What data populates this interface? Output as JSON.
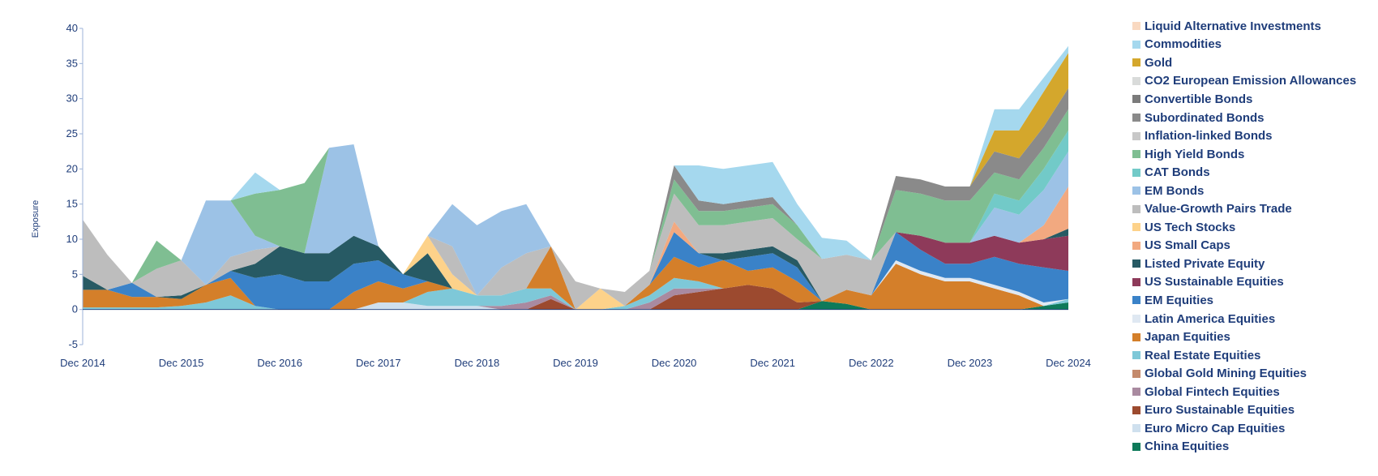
{
  "chart_data": {
    "type": "area",
    "stacked": true,
    "title": "",
    "xlabel": "",
    "ylabel": "Exposure",
    "ylim": [
      -5,
      40
    ],
    "yticks": [
      -5,
      0,
      5,
      10,
      15,
      20,
      25,
      30,
      35,
      40
    ],
    "xlim": [
      "Dec 2014",
      "Dec 2024"
    ],
    "xticks": [
      "Dec 2014",
      "Dec 2015",
      "Dec 2016",
      "Dec 2017",
      "Dec 2018",
      "Dec 2019",
      "Dec 2020",
      "Dec 2021",
      "Dec 2022",
      "Dec 2023",
      "Dec 2024"
    ],
    "grid": false,
    "legend_position": "right",
    "x": [
      "Dec 2014",
      "Mar 2015",
      "Jun 2015",
      "Sep 2015",
      "Dec 2015",
      "Mar 2016",
      "Jun 2016",
      "Sep 2016",
      "Dec 2016",
      "Mar 2017",
      "Jun 2017",
      "Sep 2017",
      "Dec 2017",
      "Mar 2018",
      "Jun 2018",
      "Sep 2018",
      "Dec 2018",
      "Mar 2019",
      "Jun 2019",
      "Sep 2019",
      "Dec 2019",
      "Mar 2020",
      "Jun 2020",
      "Sep 2020",
      "Dec 2020",
      "Mar 2021",
      "Jun 2021",
      "Sep 2021",
      "Dec 2021",
      "Mar 2022",
      "Jun 2022",
      "Sep 2022",
      "Dec 2022",
      "Mar 2023",
      "Jun 2023",
      "Sep 2023",
      "Dec 2023",
      "Mar 2024",
      "Jun 2024",
      "Sep 2024",
      "Dec 2024"
    ],
    "series": [
      {
        "name": "China Equities",
        "color": "#0e7a5a",
        "values": [
          0,
          0,
          0,
          0,
          0,
          0,
          0,
          0,
          0,
          0,
          0,
          0,
          0,
          0,
          0,
          0,
          0,
          0,
          0,
          0,
          0,
          0,
          0,
          0,
          0,
          0,
          0,
          0,
          0,
          0,
          1.2,
          0.8,
          0,
          0,
          0,
          0,
          0,
          0,
          0,
          0.5,
          1
        ]
      },
      {
        "name": "Euro Micro Cap Equities",
        "color": "#cfe0ee",
        "values": [
          0,
          0,
          0,
          0,
          0,
          0,
          0,
          0,
          0,
          0,
          0,
          0,
          1,
          1,
          0.5,
          0.5,
          0.5,
          0,
          0,
          0,
          0,
          0,
          0,
          0,
          0,
          0,
          0,
          0,
          0,
          0,
          0,
          0,
          0,
          0,
          0,
          0,
          0,
          0,
          0,
          0,
          0
        ]
      },
      {
        "name": "Euro Sustainable Equities",
        "color": "#9c4a2f",
        "values": [
          0,
          0,
          0,
          0,
          0,
          0,
          0,
          0,
          0,
          0,
          0,
          0,
          0,
          0,
          0,
          0,
          0,
          0,
          0,
          1.5,
          0,
          0,
          0,
          0,
          2,
          2.5,
          3,
          3.5,
          3,
          1,
          0,
          0,
          0,
          0,
          0,
          0,
          0,
          0,
          0,
          0,
          0
        ]
      },
      {
        "name": "Global Fintech Equities",
        "color": "#a98aa0",
        "values": [
          0,
          0,
          0,
          0,
          0,
          0,
          0,
          0,
          0,
          0,
          0,
          0,
          0,
          0,
          0,
          0,
          0,
          0.5,
          1,
          0.5,
          0,
          0,
          0,
          1,
          1,
          0.5,
          0,
          0,
          0,
          0,
          0,
          0,
          0,
          0,
          0,
          0,
          0,
          0,
          0,
          0,
          0
        ]
      },
      {
        "name": "Global Gold Mining Equities",
        "color": "#c48a6c",
        "values": [
          0,
          0,
          0,
          0,
          0,
          0,
          0,
          0,
          0,
          0,
          0,
          0,
          0,
          0,
          0,
          0,
          0,
          0,
          0,
          0,
          0,
          0,
          0,
          0,
          0,
          0,
          0,
          0,
          0,
          0,
          0,
          0,
          0,
          0,
          0,
          0,
          0,
          0,
          0,
          0,
          0
        ]
      },
      {
        "name": "Real Estate Equities",
        "color": "#7ec8d8",
        "values": [
          0.3,
          0.3,
          0.3,
          0.3,
          0.5,
          1,
          2,
          0.5,
          0,
          0,
          0,
          0,
          0,
          0,
          2,
          2.5,
          1.5,
          1.5,
          2,
          1,
          0,
          0,
          0.5,
          1,
          1.5,
          1,
          0,
          0,
          0,
          0,
          0,
          0,
          0,
          0,
          0,
          0,
          0,
          0,
          0,
          0,
          0.5
        ]
      },
      {
        "name": "Japan Equities",
        "color": "#d47f2a",
        "values": [
          2.5,
          2.5,
          1.5,
          1.5,
          1,
          2.5,
          2.5,
          0,
          0,
          0,
          0,
          2.5,
          3,
          2,
          1.5,
          0,
          0,
          0,
          0,
          6,
          0,
          0,
          0,
          1.5,
          3,
          2,
          4,
          2,
          3,
          3,
          0,
          2,
          2,
          6.5,
          5,
          4,
          4,
          3,
          2,
          0,
          0
        ]
      },
      {
        "name": "Latin America Equities",
        "color": "#dfe8f2",
        "values": [
          0,
          0,
          0,
          0,
          0,
          0,
          0,
          0,
          0,
          0,
          0,
          0,
          0,
          0,
          0,
          0,
          0,
          0,
          0,
          0,
          0,
          0,
          0,
          0,
          0,
          0,
          0,
          0,
          0,
          0,
          0,
          0,
          0,
          0.5,
          0.5,
          0.5,
          0.5,
          0.5,
          0.5,
          0.5,
          0
        ]
      },
      {
        "name": "EM Equities",
        "color": "#3a82c8",
        "values": [
          0,
          0,
          2,
          0,
          0,
          0,
          1,
          4,
          5,
          4,
          4,
          4,
          3,
          2,
          0,
          0,
          0,
          0,
          0,
          0,
          0,
          0,
          0,
          0,
          3.5,
          2,
          0,
          2,
          2,
          2,
          0,
          0,
          0,
          4,
          3,
          2,
          2,
          4,
          4,
          5,
          4
        ]
      },
      {
        "name": "US Sustainable Equities",
        "color": "#8e3a5a",
        "values": [
          0,
          0,
          0,
          0,
          0,
          0,
          0,
          0,
          0,
          0,
          0,
          0,
          0,
          0,
          0,
          0,
          0,
          0,
          0,
          0,
          0,
          0,
          0,
          0,
          0,
          0,
          0,
          0,
          0,
          0,
          0,
          0,
          0,
          0,
          2,
          3,
          3,
          3,
          3,
          4,
          5
        ]
      },
      {
        "name": "Listed Private Equity",
        "color": "#275a64",
        "values": [
          2,
          0,
          0,
          0,
          0.5,
          0,
          0,
          2,
          4,
          4,
          4,
          4,
          2,
          0,
          4,
          0,
          0,
          0,
          0,
          0,
          0,
          0,
          0,
          0,
          0,
          0,
          1,
          1,
          1,
          1,
          0,
          0,
          0,
          0,
          0,
          0,
          0,
          0,
          0,
          0,
          1
        ]
      },
      {
        "name": "US Small Caps",
        "color": "#f2a980",
        "values": [
          0,
          0,
          0,
          0,
          0,
          0,
          0,
          0,
          0,
          0,
          0,
          0,
          0,
          0,
          0,
          0,
          0,
          0,
          0,
          0,
          0,
          0,
          0,
          0,
          1.5,
          0,
          0,
          0,
          0,
          0,
          0,
          0,
          0,
          0,
          0,
          0,
          0,
          0,
          0,
          2,
          6
        ]
      },
      {
        "name": "US Tech Stocks",
        "color": "#fdd28a",
        "values": [
          0,
          0,
          0,
          0,
          0,
          0,
          0,
          0,
          0,
          0,
          0,
          0,
          0,
          0,
          2.5,
          2,
          0,
          0,
          0,
          0,
          0,
          3,
          0,
          0,
          0,
          0,
          0,
          0,
          0,
          0,
          0,
          0,
          0,
          0,
          0,
          0,
          0,
          0,
          0,
          0,
          0
        ]
      },
      {
        "name": "Value-Growth Pairs Trade",
        "color": "#bdbdbd",
        "values": [
          8,
          5,
          0,
          4,
          5,
          0,
          2,
          2,
          0,
          0,
          0,
          0,
          0,
          0,
          0,
          4,
          0,
          4,
          5,
          0,
          4,
          0,
          2,
          2,
          4,
          4,
          4,
          4,
          4,
          3,
          6,
          5,
          5,
          0,
          0,
          0,
          0,
          0,
          0,
          0,
          0
        ]
      },
      {
        "name": "EM Bonds",
        "color": "#9cc2e6",
        "values": [
          0,
          0,
          0,
          0,
          0,
          12,
          8,
          2,
          0,
          0,
          15,
          13,
          0,
          0,
          0,
          6,
          10,
          8,
          7,
          0,
          0,
          0,
          0,
          0,
          0,
          0,
          0,
          0,
          0,
          0,
          0,
          0,
          0,
          0,
          0,
          0,
          0,
          4,
          4,
          5,
          5
        ]
      },
      {
        "name": "CAT Bonds",
        "color": "#72cac8",
        "values": [
          0,
          0,
          0,
          0,
          0,
          0,
          0,
          0,
          0,
          0,
          0,
          0,
          0,
          0,
          0,
          0,
          0,
          0,
          0,
          0,
          0,
          0,
          0,
          0,
          0,
          0,
          0,
          0,
          0,
          0,
          0,
          0,
          0,
          0,
          0,
          0,
          0,
          2,
          2,
          3,
          3
        ]
      },
      {
        "name": "High Yield Bonds",
        "color": "#7fbe92",
        "values": [
          0,
          0,
          0,
          4,
          0,
          0,
          0,
          6,
          8,
          10,
          0,
          0,
          0,
          0,
          0,
          0,
          0,
          0,
          0,
          0,
          0,
          0,
          0,
          0,
          2,
          2,
          2,
          2,
          2,
          2,
          0,
          0,
          0,
          6,
          6,
          6,
          6,
          3,
          3,
          3,
          3
        ]
      },
      {
        "name": "Inflation-linked Bonds",
        "color": "#c8c8c8",
        "values": [
          0,
          0,
          0,
          0,
          0,
          0,
          0,
          0,
          0,
          0,
          0,
          0,
          0,
          0,
          0,
          0,
          0,
          0,
          0,
          0,
          0,
          0,
          0,
          0,
          0,
          0,
          0,
          0,
          0,
          0,
          0,
          0,
          0,
          0,
          0,
          0,
          0,
          0,
          0,
          0,
          0
        ]
      },
      {
        "name": "Subordinated Bonds",
        "color": "#8a8a8a",
        "values": [
          0,
          0,
          0,
          0,
          0,
          0,
          0,
          0,
          0,
          0,
          0,
          0,
          0,
          0,
          0,
          0,
          0,
          0,
          0,
          0,
          0,
          0,
          0,
          0,
          2,
          1.5,
          1,
          1,
          1,
          0,
          0,
          0,
          0,
          2,
          2,
          2,
          2,
          3,
          3,
          3,
          3
        ]
      },
      {
        "name": "Convertible Bonds",
        "color": "#7b7b7b",
        "values": [
          0,
          0,
          0,
          0,
          0,
          0,
          0,
          0,
          0,
          0,
          0,
          0,
          0,
          0,
          0,
          0,
          0,
          0,
          0,
          0,
          0,
          0,
          0,
          0,
          0,
          0,
          0,
          0,
          0,
          0,
          0,
          0,
          0,
          0,
          0,
          0,
          0,
          0,
          0,
          0,
          0
        ]
      },
      {
        "name": "CO2 European Emission Allowances",
        "color": "#d9dbda",
        "values": [
          0,
          0,
          0,
          0,
          0,
          0,
          0,
          0,
          0,
          0,
          0,
          0,
          0,
          0,
          0,
          0,
          0,
          0,
          0,
          0,
          0,
          0,
          0,
          0,
          0,
          0,
          0,
          0,
          0,
          0,
          0,
          0,
          0,
          0,
          0,
          0,
          0,
          0,
          0,
          0,
          0
        ]
      },
      {
        "name": "Gold",
        "color": "#d4a72c",
        "values": [
          0,
          0,
          0,
          0,
          0,
          0,
          0,
          0,
          0,
          0,
          0,
          0,
          0,
          0,
          0,
          0,
          0,
          0,
          0,
          0,
          0,
          0,
          0,
          0,
          0,
          0,
          0,
          0,
          0,
          0,
          0,
          0,
          0,
          0,
          0,
          0,
          0,
          3,
          4,
          5,
          5
        ]
      },
      {
        "name": "Commodities",
        "color": "#a5d8ee",
        "values": [
          0,
          0,
          0,
          0,
          0,
          0,
          0,
          3,
          0,
          0,
          0,
          0,
          0,
          0,
          0,
          0,
          0,
          0,
          0,
          0,
          0,
          0,
          0,
          0,
          0,
          5,
          5,
          5,
          5,
          3,
          3,
          2,
          0,
          0,
          0,
          0,
          0,
          3,
          3,
          2,
          1
        ]
      },
      {
        "name": "Liquid Alternative Investments",
        "color": "#f9d9c1",
        "values": [
          0,
          0,
          0,
          0,
          0,
          0,
          0,
          0,
          0,
          0,
          0,
          0,
          0,
          0,
          0,
          0,
          0,
          0,
          0,
          0,
          0,
          0,
          0,
          0,
          0,
          0,
          0,
          0,
          0,
          0,
          0,
          0,
          0,
          0,
          0,
          0,
          0,
          0,
          0,
          0,
          0
        ]
      }
    ],
    "legend": [
      "Liquid Alternative Investments",
      "Commodities",
      "Gold",
      "CO2 European Emission Allowances",
      "Convertible Bonds",
      "Subordinated Bonds",
      "Inflation-linked Bonds",
      "High Yield Bonds",
      "CAT Bonds",
      "EM Bonds",
      "Value-Growth Pairs Trade",
      "US Tech Stocks",
      "US Small Caps",
      "Listed Private Equity",
      "US Sustainable Equities",
      "EM Equities",
      "Latin America Equities",
      "Japan Equities",
      "Real Estate Equities",
      "Global Gold Mining Equities",
      "Global Fintech Equities",
      "Euro Sustainable Equities",
      "Euro Micro Cap Equities",
      "China Equities"
    ]
  }
}
